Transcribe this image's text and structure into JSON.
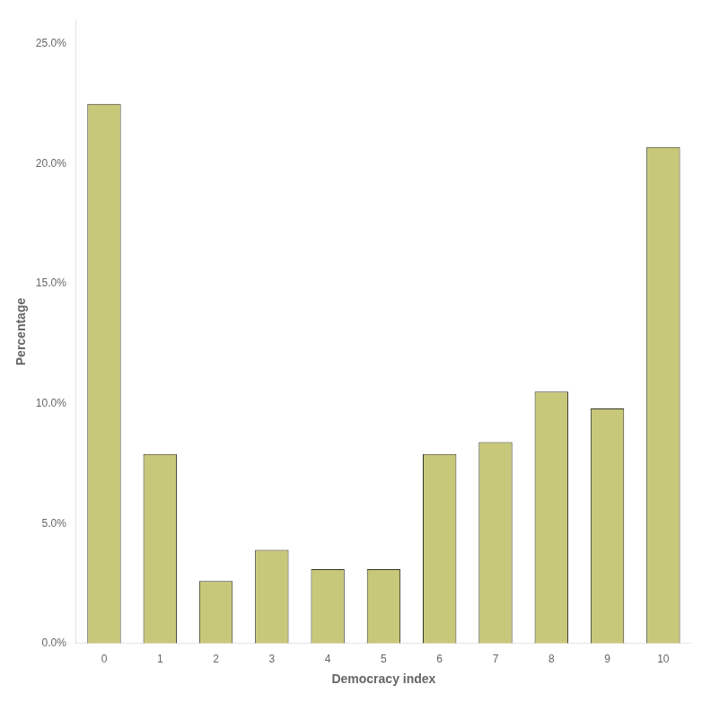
{
  "chart_data": {
    "type": "bar",
    "categories": [
      "0",
      "1",
      "2",
      "3",
      "4",
      "5",
      "6",
      "7",
      "8",
      "9",
      "10"
    ],
    "values": [
      22.5,
      7.9,
      2.6,
      3.9,
      3.1,
      3.1,
      7.9,
      8.4,
      10.5,
      9.8,
      20.7
    ],
    "color": "#C8C87A",
    "xlabel": "Democracy index",
    "ylabel": "Percentage",
    "ylim": [
      0,
      26.0
    ],
    "yticks": [
      {
        "value": 0.0,
        "label": "0.0%"
      },
      {
        "value": 5.0,
        "label": "5.0%"
      },
      {
        "value": 10.0,
        "label": "10.0%"
      },
      {
        "value": 15.0,
        "label": "15.0%"
      },
      {
        "value": 20.0,
        "label": "20.0%"
      },
      {
        "value": 25.0,
        "label": "25.0%"
      }
    ],
    "grid": false
  }
}
